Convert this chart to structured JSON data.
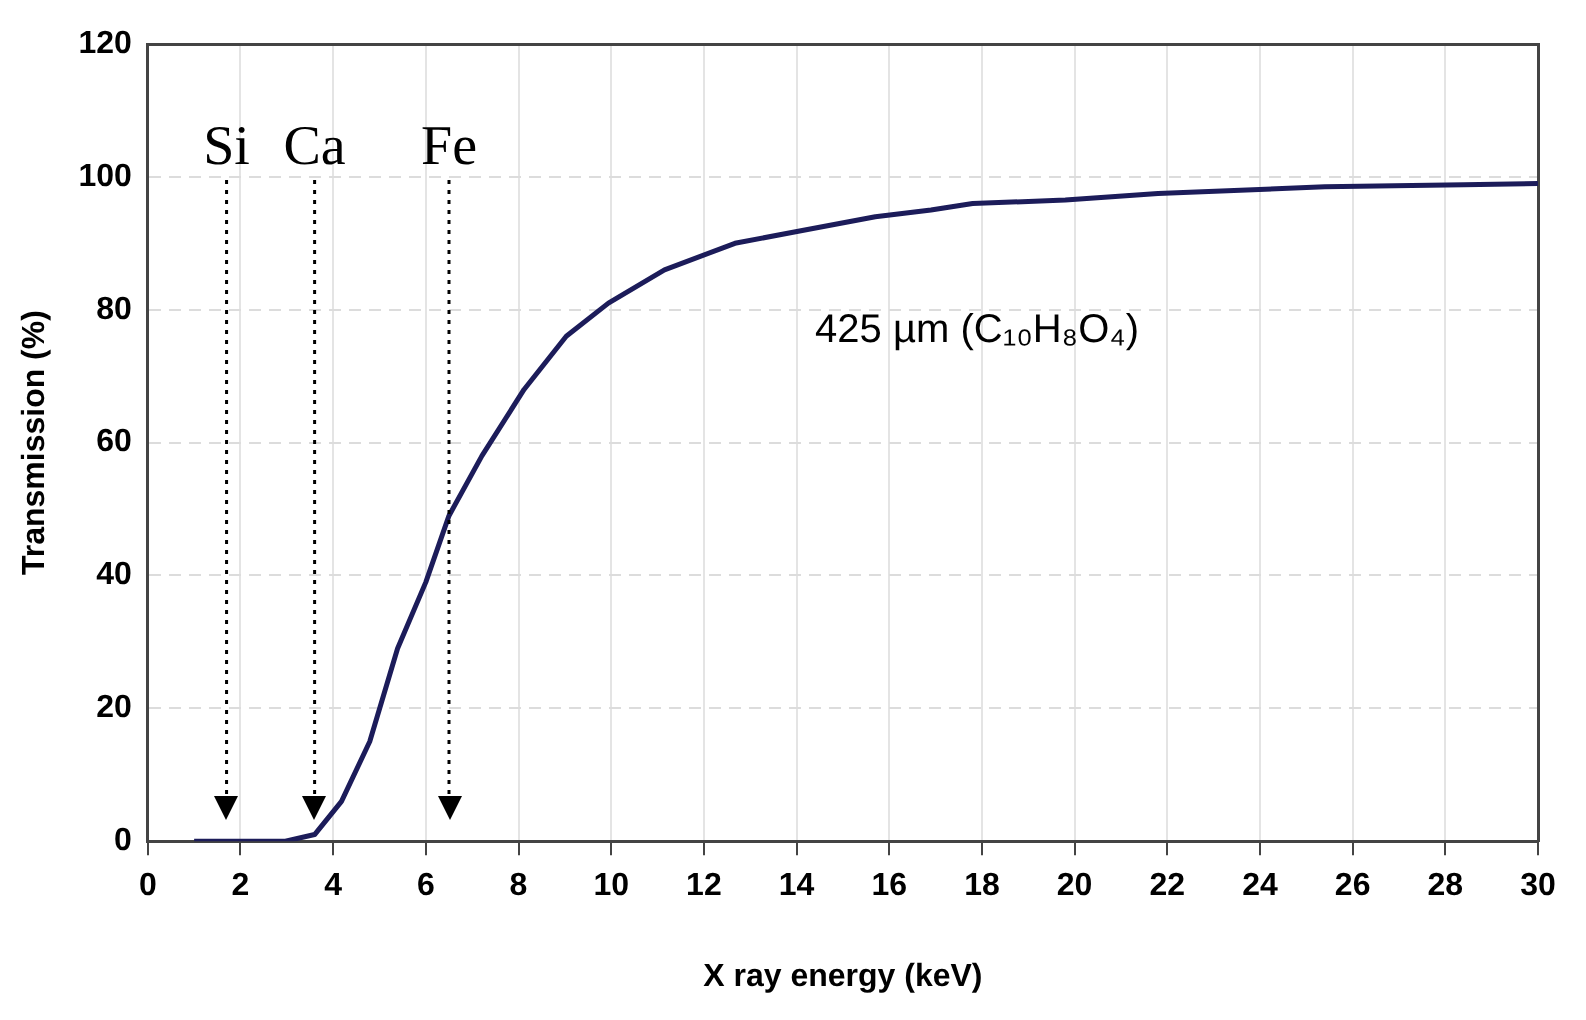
{
  "chart_data": {
    "type": "line",
    "xlabel": "X ray energy (keV)",
    "ylabel": "Transmission (%)",
    "x": [
      1,
      2,
      2.97,
      3.6,
      4.18,
      4.79,
      5.39,
      6.0,
      6.5,
      7.21,
      8.12,
      9.03,
      9.94,
      11.15,
      12.67,
      14.18,
      15.7,
      16.9,
      17.8,
      19.8,
      21.8,
      25.4,
      28.4,
      30
    ],
    "series": [
      {
        "color": "#1c1c5a",
        "values": [
          0,
          0,
          0,
          1,
          6,
          15,
          29,
          39,
          49,
          58,
          68,
          76,
          81,
          86,
          90,
          92,
          94,
          95,
          96,
          96.5,
          97.5,
          98.5,
          98.8,
          99
        ]
      }
    ],
    "xlim": [
      0,
      30
    ],
    "xticks": [
      0,
      2,
      4,
      6,
      8,
      10,
      12,
      14,
      16,
      18,
      20,
      22,
      24,
      26,
      28,
      30
    ],
    "ylim": [
      0,
      120
    ],
    "yticks": [
      0,
      20,
      40,
      60,
      80,
      100,
      120
    ],
    "grid": true,
    "legend": false,
    "marker": "none",
    "line_style": "solid",
    "ref_lines": [
      {
        "axis": "x",
        "value": 1.7,
        "label": "Si",
        "line_style": "dotted"
      },
      {
        "axis": "x",
        "value": 3.6,
        "label": "Ca",
        "line_style": "dotted"
      },
      {
        "axis": "x",
        "value": 6.5,
        "label": "Fe",
        "line_style": "dotted"
      }
    ],
    "annotations": [
      "425 µm (C₁₀H₈O₄)"
    ]
  }
}
